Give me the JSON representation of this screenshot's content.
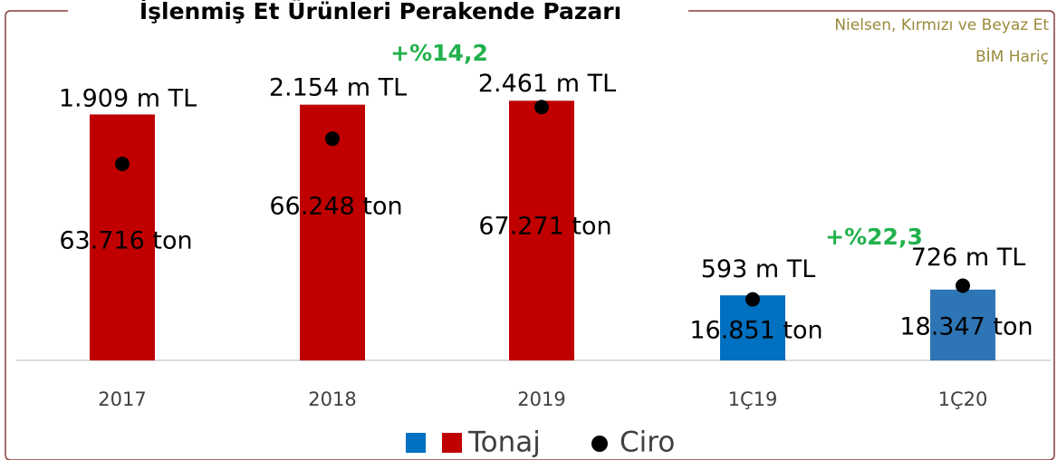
{
  "chart_data": {
    "type": "bar",
    "title": "İşlenmiş Et Ürünleri Perakende Pazarı",
    "source": [
      "Nielsen, Kırmızı ve Beyaz Et",
      "BİM Hariç"
    ],
    "categories": [
      "2017",
      "2018",
      "2019",
      "1Ç19",
      "1Ç20"
    ],
    "series": [
      {
        "name": "Tonaj",
        "axis": "y",
        "colors": [
          "#c00000",
          "#c00000",
          "#c00000",
          "#0070c0",
          "#2e75b6"
        ],
        "values": [
          63716,
          66248,
          67271,
          16851,
          18347
        ],
        "value_labels": [
          "63.716 ton",
          "66.248 ton",
          "67.271 ton",
          "16.851 ton",
          "18.347 ton"
        ]
      },
      {
        "name": "Ciro",
        "axis": "y2",
        "color": "#000000",
        "values": [
          1909,
          2154,
          2461,
          593,
          726
        ],
        "value_labels": [
          "1.909 m TL",
          "2.154 m TL",
          "2.461 m TL",
          "593 m TL",
          "726 m TL"
        ]
      }
    ],
    "annotations": [
      "+%14,2",
      "+%22,3"
    ],
    "ylim": [
      0,
      80000
    ],
    "y2lim": [
      0,
      3000
    ]
  }
}
